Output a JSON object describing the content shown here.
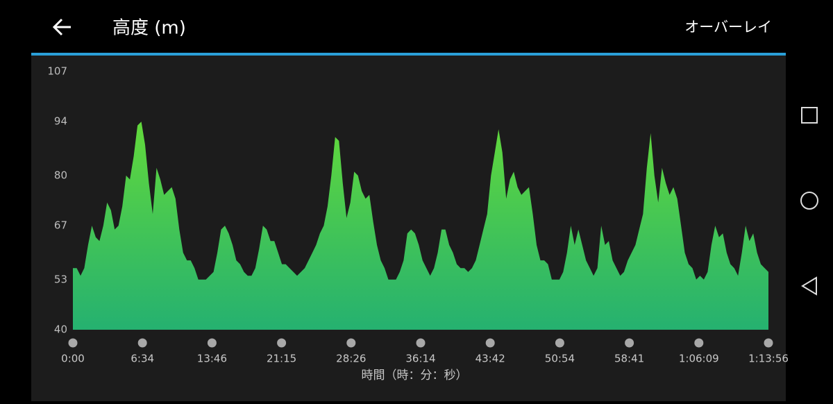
{
  "header": {
    "title": "高度 (m)",
    "action": "オーバーレイ"
  },
  "chart_data": {
    "type": "area",
    "xlabel": "時間（時：分：秒）",
    "x_labels": [
      "0:00",
      "6:34",
      "13:46",
      "21:15",
      "28:26",
      "36:14",
      "43:42",
      "50:54",
      "58:41",
      "1:06:09",
      "1:13:56"
    ],
    "values": [
      56,
      56,
      54,
      56,
      62,
      67,
      64,
      63,
      67,
      73,
      71,
      66,
      67,
      72,
      80,
      79,
      85,
      93,
      94,
      88,
      78,
      70,
      82,
      79,
      75,
      76,
      77,
      74,
      66,
      60,
      58,
      58,
      56,
      53,
      53,
      53,
      54,
      55,
      60,
      66,
      67,
      65,
      62,
      58,
      57,
      55,
      54,
      54,
      56,
      61,
      67,
      66,
      63,
      63,
      60,
      57,
      57,
      56,
      55,
      54,
      55,
      56,
      58,
      60,
      62,
      65,
      67,
      72,
      80,
      90,
      89,
      78,
      69,
      73,
      81,
      80,
      76,
      74,
      75,
      68,
      62,
      58,
      56,
      53,
      53,
      53,
      55,
      58,
      65,
      66,
      65,
      62,
      58,
      56,
      54,
      56,
      60,
      66,
      66,
      62,
      60,
      57,
      56,
      56,
      55,
      56,
      58,
      62,
      66,
      70,
      80,
      86,
      92,
      86,
      74,
      79,
      81,
      77,
      75,
      76,
      77,
      70,
      62,
      58,
      58,
      57,
      53,
      53,
      53,
      55,
      60,
      67,
      62,
      66,
      62,
      58,
      56,
      54,
      56,
      67,
      62,
      63,
      58,
      56,
      54,
      55,
      58,
      60,
      62,
      66,
      70,
      82,
      91,
      80,
      73,
      82,
      78,
      75,
      77,
      74,
      67,
      60,
      57,
      56,
      53,
      54,
      53,
      55,
      62,
      67,
      64,
      65,
      60,
      57,
      56,
      54,
      60,
      67,
      63,
      65,
      60,
      57,
      56,
      55
    ],
    "ylim": [
      40,
      107
    ],
    "yticks": [
      40,
      53,
      67,
      80,
      94,
      107
    ],
    "gradient": [
      "#62d93b",
      "#25b170"
    ]
  }
}
